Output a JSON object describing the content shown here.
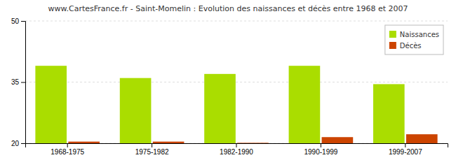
{
  "chart_data": {
    "type": "bar",
    "title": "www.CartesFrance.fr - Saint-Momelin : Evolution des naissances et décès entre 1968 et 2007",
    "categories": [
      "1968-1975",
      "1975-1982",
      "1982-1990",
      "1990-1999",
      "1999-2007"
    ],
    "series": [
      {
        "name": "Naissances",
        "color": "#aadd00",
        "values": [
          39,
          36,
          37,
          39,
          34.5
        ]
      },
      {
        "name": "Décès",
        "color": "#cc4400",
        "values": [
          20.4,
          20.4,
          20.1,
          21.5,
          22.2
        ]
      }
    ],
    "ylim": [
      20,
      50
    ],
    "yticks": [
      20,
      35,
      50
    ],
    "grid": true,
    "legend": "upper right"
  }
}
